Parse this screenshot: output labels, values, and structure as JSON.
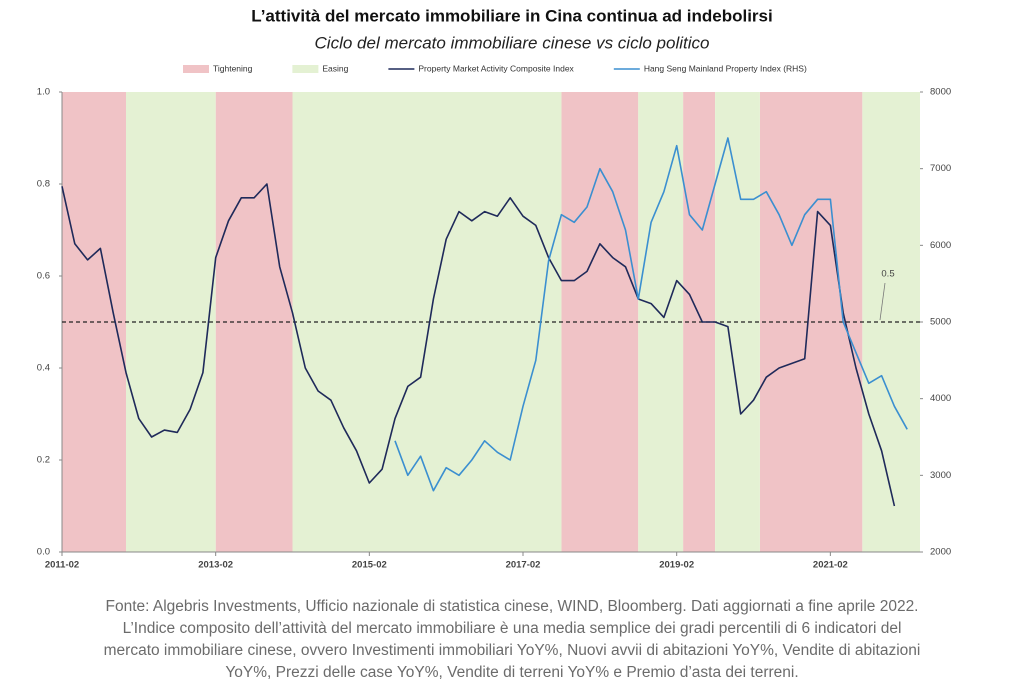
{
  "chart_data": {
    "type": "line",
    "title": "L’attività del mercato immobiliare in Cina continua ad indebolirsi",
    "subtitle": "Ciclo del mercato immobiliare cinese vs ciclo politico",
    "x": [
      "2011-02",
      "2011-04",
      "2011-06",
      "2011-08",
      "2011-10",
      "2011-12",
      "2012-02",
      "2012-04",
      "2012-06",
      "2012-08",
      "2012-10",
      "2012-12",
      "2013-02",
      "2013-04",
      "2013-06",
      "2013-08",
      "2013-10",
      "2013-12",
      "2014-02",
      "2014-04",
      "2014-06",
      "2014-08",
      "2014-10",
      "2014-12",
      "2015-02",
      "2015-04",
      "2015-06",
      "2015-08",
      "2015-10",
      "2015-12",
      "2016-02",
      "2016-04",
      "2016-06",
      "2016-08",
      "2016-10",
      "2016-12",
      "2017-02",
      "2017-04",
      "2017-06",
      "2017-08",
      "2017-10",
      "2017-12",
      "2018-02",
      "2018-04",
      "2018-06",
      "2018-08",
      "2018-10",
      "2018-12",
      "2019-02",
      "2019-04",
      "2019-06",
      "2019-08",
      "2019-10",
      "2019-12",
      "2020-02",
      "2020-04",
      "2020-06",
      "2020-08",
      "2020-10",
      "2020-12",
      "2021-02",
      "2021-04",
      "2021-06",
      "2021-08",
      "2021-10",
      "2021-12",
      "2022-02"
    ],
    "xlim": [
      "2011-02",
      "2022-04"
    ],
    "xticks": [
      "2011-02",
      "2013-02",
      "2015-02",
      "2017-02",
      "2019-02",
      "2021-02"
    ],
    "ylim": [
      0,
      1
    ],
    "yticks": [
      {
        "value": 0,
        "label": "0.0"
      },
      0.2,
      0.4,
      0.6,
      0.8,
      {
        "value": 1,
        "label": "1.0"
      }
    ],
    "y2lim": [
      2000,
      8000
    ],
    "y2ticks": [
      2000,
      3000,
      4000,
      5000,
      6000,
      7000,
      8000
    ],
    "hline": 0.5,
    "periods": [
      {
        "name": "Tightening",
        "color": "#f0c3c6",
        "ranges": [
          [
            "2011-02",
            "2011-12"
          ],
          [
            "2013-02",
            "2014-02"
          ],
          [
            "2017-08",
            "2018-08"
          ],
          [
            "2019-03",
            "2019-08"
          ],
          [
            "2020-03",
            "2021-07"
          ]
        ]
      },
      {
        "name": "Easing",
        "color": "#e4f1d3",
        "ranges": [
          [
            "2011-12",
            "2013-02"
          ],
          [
            "2014-02",
            "2017-08"
          ],
          [
            "2018-08",
            "2019-03"
          ],
          [
            "2019-08",
            "2020-03"
          ],
          [
            "2021-07",
            "2022-04"
          ]
        ]
      }
    ],
    "series": [
      {
        "name": "Property Market Activity Composite Index",
        "color": "#1f2a5a",
        "values": [
          0.795,
          0.67,
          0.635,
          0.66,
          0.52,
          0.39,
          0.29,
          0.25,
          0.265,
          0.26,
          0.31,
          0.39,
          0.64,
          0.72,
          0.77,
          0.77,
          0.8,
          0.62,
          0.52,
          0.4,
          0.35,
          0.33,
          0.27,
          0.22,
          0.15,
          0.18,
          0.29,
          0.36,
          0.38,
          0.55,
          0.68,
          0.74,
          0.72,
          0.74,
          0.73,
          0.77,
          0.73,
          0.71,
          0.64,
          0.59,
          0.59,
          0.61,
          0.67,
          0.64,
          0.62,
          0.55,
          0.54,
          0.51,
          0.59,
          0.56,
          0.5,
          0.5,
          0.49,
          0.3,
          0.33,
          0.38,
          0.4,
          0.41,
          0.42,
          0.74,
          0.71,
          0.52,
          0.4,
          0.3,
          0.22,
          0.1,
          null
        ]
      },
      {
        "name": "Hang Seng Mainland Property Index (RHS)",
        "color": "#3b8fd0",
        "axis": "y2",
        "values": [
          null,
          null,
          null,
          null,
          null,
          null,
          null,
          null,
          null,
          null,
          null,
          null,
          null,
          null,
          null,
          null,
          null,
          null,
          null,
          null,
          null,
          null,
          null,
          null,
          null,
          null,
          3450,
          3000,
          3250,
          2800,
          3100,
          3000,
          3200,
          3450,
          3300,
          3200,
          3900,
          4500,
          5800,
          6400,
          6300,
          6500,
          7000,
          6700,
          6200,
          5300,
          6300,
          6700,
          7300,
          6400,
          6200,
          6800,
          7400,
          6600,
          6600,
          6700,
          6400,
          6000,
          6400,
          6600,
          6600,
          5000,
          4600,
          4200,
          4300,
          3900,
          3600
        ]
      }
    ],
    "source_lines": [
      "Fonte: Algebris Investments, Ufficio nazionale di statistica cinese, WIND, Bloomberg. Dati aggiornati a fine aprile 2022.",
      "L’Indice composito dell’attività del mercato immobiliare è una media semplice dei gradi percentili di 6 indicatori del",
      "mercato immobiliare cinese, ovvero Investimenti immobiliari YoY%, Nuovi avvii di abitazioni YoY%, Vendite di abitazioni",
      "YoY%, Prezzi delle case YoY%, Vendite di terreni YoY% e Premio d’asta dei terreni."
    ]
  }
}
